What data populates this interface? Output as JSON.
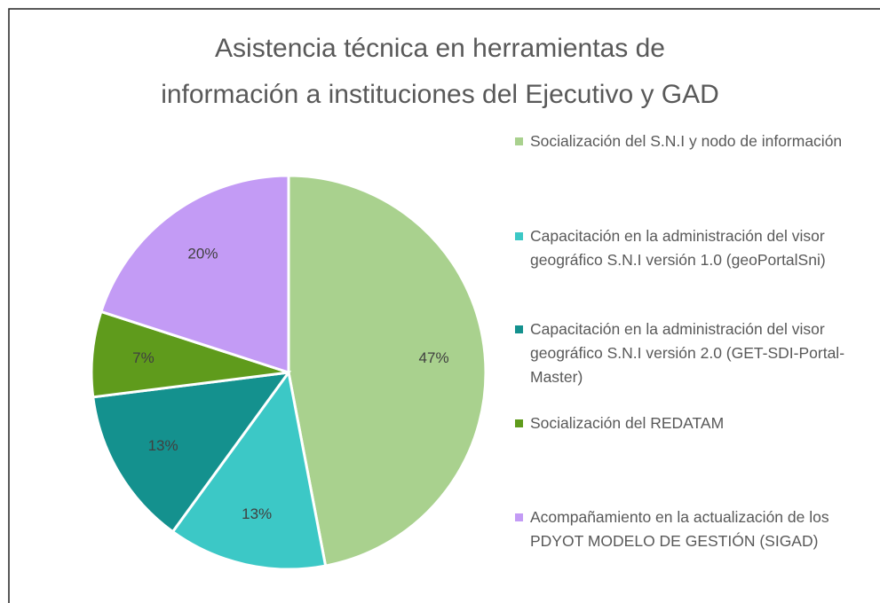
{
  "chart_data": {
    "type": "pie",
    "title": [
      "Asistencia técnica en herramientas de",
      "información a instituciones del Ejecutivo y GAD"
    ],
    "categories": [
      "Socialización del S.N.I y nodo de información",
      "Capacitación en la administración del visor geográfico S.N.I versión 1.0 (geoPortalSni)",
      "Capacitación en la administración del visor geográfico S.N.I versión 2.0 (GET-SDI-Portal-Master)",
      "Socialización del REDATAM",
      "Acompañamiento en la actualización de los PDYOT MODELO DE GESTIÓN (SIGAD)"
    ],
    "values": [
      47,
      13,
      13,
      7,
      20
    ],
    "value_labels": [
      "47%",
      "13%",
      "13%",
      "7%",
      "20%"
    ],
    "colors": [
      "#a9d18e",
      "#3cc8c6",
      "#14918e",
      "#5f9b1c",
      "#c39bf5"
    ],
    "legend": "right"
  }
}
